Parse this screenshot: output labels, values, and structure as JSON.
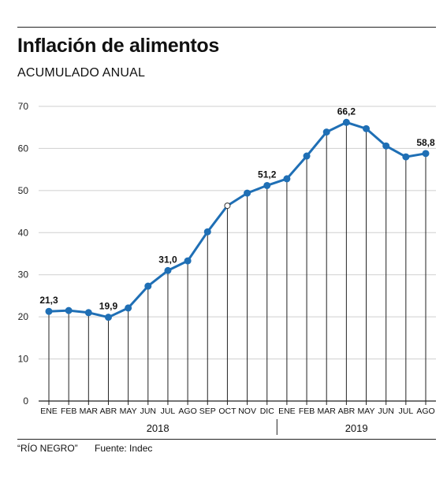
{
  "header": {
    "title": "Inflación de alimentos",
    "subtitle": "ACUMULADO ANUAL"
  },
  "footer": {
    "source_outlet": "“RÍO NEGRO”",
    "source": "Fuente: Indec"
  },
  "colors": {
    "line": "#1f6fb5",
    "axis": "#222222",
    "grid": "#cfcfcf"
  },
  "chart_data": {
    "type": "line",
    "title": "Inflación de alimentos",
    "subtitle": "ACUMULADO ANUAL",
    "categories": [
      "ENE",
      "FEB",
      "MAR",
      "ABR",
      "MAY",
      "JUN",
      "JUL",
      "AGO",
      "SEP",
      "OCT",
      "NOV",
      "DIC",
      "ENE",
      "FEB",
      "MAR",
      "ABR",
      "MAY",
      "JUN",
      "JUL",
      "AGO"
    ],
    "year_groups": [
      {
        "label": "2018",
        "start": 0,
        "end": 11
      },
      {
        "label": "2019",
        "start": 12,
        "end": 19
      }
    ],
    "series": [
      {
        "values": [
          21.3,
          21.5,
          21.0,
          19.9,
          22.1,
          27.3,
          31.0,
          33.3,
          40.2,
          46.4,
          49.4,
          51.2,
          52.8,
          58.2,
          63.9,
          66.2,
          64.7,
          60.6,
          58.0,
          58.8
        ]
      }
    ],
    "data_labels": [
      {
        "index": 0,
        "text": "21,3"
      },
      {
        "index": 3,
        "text": "19,9"
      },
      {
        "index": 6,
        "text": "31,0"
      },
      {
        "index": 11,
        "text": "51,2"
      },
      {
        "index": 15,
        "text": "66,2"
      },
      {
        "index": 19,
        "text": "58,8"
      }
    ],
    "y_ticks": [
      0,
      10,
      20,
      30,
      40,
      50,
      60,
      70
    ],
    "ylim": [
      0,
      70
    ],
    "grid": true,
    "drop_lines": true,
    "hollow_marker_index": 9
  }
}
